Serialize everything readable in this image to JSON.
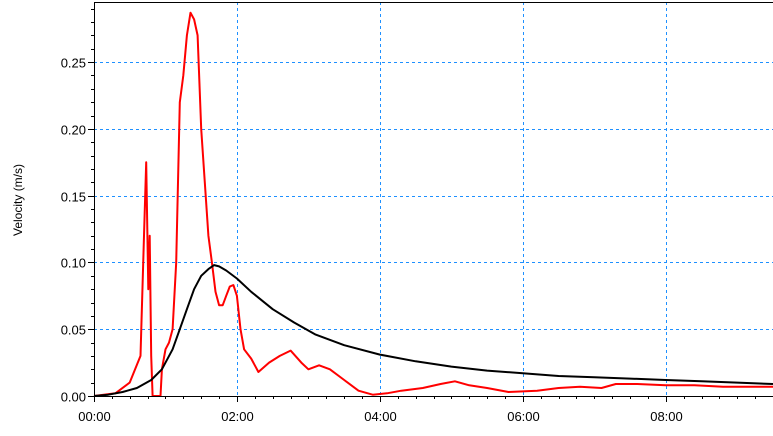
{
  "chart_data": {
    "type": "line",
    "title": "",
    "xlabel": "",
    "ylabel": "Velocity (m/s)",
    "xlim": [
      0,
      9.5
    ],
    "ylim": [
      0,
      0.295
    ],
    "x_ticks": [
      {
        "value": 0,
        "label": "00:00"
      },
      {
        "value": 2,
        "label": "02:00"
      },
      {
        "value": 4,
        "label": "04:00"
      },
      {
        "value": 6,
        "label": "06:00"
      },
      {
        "value": 8,
        "label": "08:00"
      }
    ],
    "y_ticks": [
      {
        "value": 0,
        "label": "0.00"
      },
      {
        "value": 0.05,
        "label": "0.05"
      },
      {
        "value": 0.1,
        "label": "0.10"
      },
      {
        "value": 0.15,
        "label": "0.15"
      },
      {
        "value": 0.2,
        "label": "0.20"
      },
      {
        "value": 0.25,
        "label": "0.25"
      }
    ],
    "grid": true,
    "grid_color": "#1e90ff",
    "legend": false,
    "series": [
      {
        "color": "#ff0000",
        "points": [
          [
            0,
            0
          ],
          [
            0.3,
            0.002
          ],
          [
            0.5,
            0.01
          ],
          [
            0.65,
            0.03
          ],
          [
            0.7,
            0.12
          ],
          [
            0.73,
            0.175
          ],
          [
            0.76,
            0.08
          ],
          [
            0.78,
            0.12
          ],
          [
            0.8,
            0.03
          ],
          [
            0.82,
            0.0
          ],
          [
            0.93,
            0.0
          ],
          [
            0.95,
            0.02
          ],
          [
            1.0,
            0.035
          ],
          [
            1.05,
            0.04
          ],
          [
            1.1,
            0.05
          ],
          [
            1.15,
            0.1
          ],
          [
            1.2,
            0.22
          ],
          [
            1.25,
            0.24
          ],
          [
            1.3,
            0.27
          ],
          [
            1.35,
            0.287
          ],
          [
            1.4,
            0.282
          ],
          [
            1.45,
            0.27
          ],
          [
            1.5,
            0.2
          ],
          [
            1.55,
            0.16
          ],
          [
            1.6,
            0.12
          ],
          [
            1.65,
            0.1
          ],
          [
            1.7,
            0.078
          ],
          [
            1.75,
            0.068
          ],
          [
            1.8,
            0.068
          ],
          [
            1.85,
            0.075
          ],
          [
            1.9,
            0.082
          ],
          [
            1.95,
            0.083
          ],
          [
            2.0,
            0.075
          ],
          [
            2.05,
            0.05
          ],
          [
            2.1,
            0.035
          ],
          [
            2.2,
            0.028
          ],
          [
            2.3,
            0.018
          ],
          [
            2.45,
            0.025
          ],
          [
            2.6,
            0.03
          ],
          [
            2.75,
            0.034
          ],
          [
            2.9,
            0.025
          ],
          [
            3.0,
            0.02
          ],
          [
            3.15,
            0.023
          ],
          [
            3.3,
            0.02
          ],
          [
            3.5,
            0.012
          ],
          [
            3.7,
            0.004
          ],
          [
            3.9,
            0.001
          ],
          [
            4.1,
            0.002
          ],
          [
            4.3,
            0.004
          ],
          [
            4.6,
            0.006
          ],
          [
            4.85,
            0.009
          ],
          [
            5.05,
            0.011
          ],
          [
            5.25,
            0.008
          ],
          [
            5.5,
            0.006
          ],
          [
            5.8,
            0.003
          ],
          [
            6.2,
            0.004
          ],
          [
            6.5,
            0.006
          ],
          [
            6.8,
            0.007
          ],
          [
            7.1,
            0.006
          ],
          [
            7.3,
            0.009
          ],
          [
            7.6,
            0.009
          ],
          [
            8.0,
            0.008
          ],
          [
            8.4,
            0.008
          ],
          [
            8.8,
            0.007
          ],
          [
            9.2,
            0.007
          ],
          [
            9.5,
            0.007
          ]
        ]
      },
      {
        "color": "#000000",
        "points": [
          [
            0,
            0
          ],
          [
            0.2,
            0.001
          ],
          [
            0.4,
            0.003
          ],
          [
            0.6,
            0.006
          ],
          [
            0.8,
            0.012
          ],
          [
            0.95,
            0.02
          ],
          [
            1.1,
            0.035
          ],
          [
            1.2,
            0.05
          ],
          [
            1.3,
            0.065
          ],
          [
            1.4,
            0.08
          ],
          [
            1.5,
            0.09
          ],
          [
            1.6,
            0.095
          ],
          [
            1.68,
            0.098
          ],
          [
            1.75,
            0.097
          ],
          [
            1.85,
            0.094
          ],
          [
            2.0,
            0.088
          ],
          [
            2.2,
            0.078
          ],
          [
            2.5,
            0.065
          ],
          [
            2.8,
            0.055
          ],
          [
            3.1,
            0.046
          ],
          [
            3.5,
            0.038
          ],
          [
            4.0,
            0.031
          ],
          [
            4.5,
            0.026
          ],
          [
            5.0,
            0.022
          ],
          [
            5.5,
            0.019
          ],
          [
            6.0,
            0.017
          ],
          [
            6.5,
            0.015
          ],
          [
            7.0,
            0.014
          ],
          [
            7.5,
            0.013
          ],
          [
            8.0,
            0.012
          ],
          [
            8.5,
            0.011
          ],
          [
            9.0,
            0.01
          ],
          [
            9.5,
            0.009
          ]
        ]
      }
    ]
  }
}
